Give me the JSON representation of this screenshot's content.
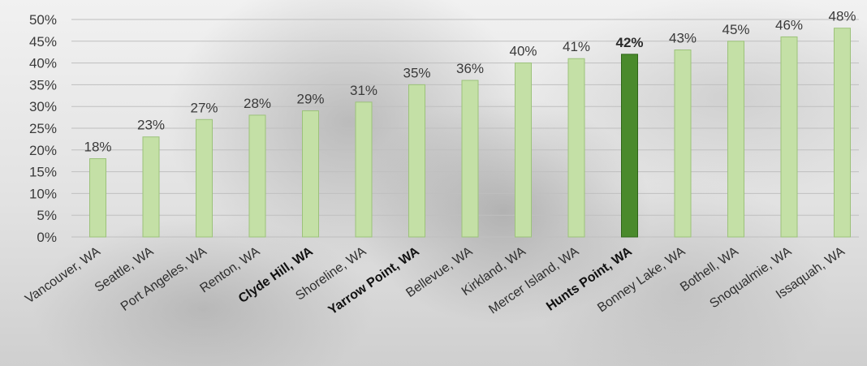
{
  "chart_data": {
    "type": "bar",
    "categories": [
      "Vancouver, WA",
      "Seattle, WA",
      "Port Angeles, WA",
      "Renton, WA",
      "Clyde Hill, WA",
      "Shoreline, WA",
      "Yarrow Point, WA",
      "Bellevue, WA",
      "Kirkland, WA",
      "Mercer Island, WA",
      "Hunts Point, WA",
      "Bonney Lake, WA",
      "Bothell, WA",
      "Snoqualmie, WA",
      "Issaquah, WA"
    ],
    "values": [
      18,
      23,
      27,
      28,
      29,
      31,
      35,
      36,
      40,
      41,
      42,
      43,
      45,
      46,
      48
    ],
    "value_labels": [
      "18%",
      "23%",
      "27%",
      "28%",
      "29%",
      "31%",
      "35%",
      "36%",
      "40%",
      "41%",
      "42%",
      "43%",
      "45%",
      "46%",
      "48%"
    ],
    "bold_categories": [
      "Clyde Hill, WA",
      "Yarrow Point, WA",
      "Hunts Point, WA"
    ],
    "highlight_category": "Hunts Point, WA",
    "yticks": [
      "0%",
      "5%",
      "10%",
      "15%",
      "20%",
      "25%",
      "30%",
      "35%",
      "40%",
      "45%",
      "50%"
    ],
    "ylim": [
      0,
      50
    ],
    "grid": true,
    "colors": {
      "bar": "#c4e0a6",
      "bar_edge": "#9cc27a",
      "highlight": "#4a8a2c",
      "highlight_edge": "#2f6518"
    }
  }
}
